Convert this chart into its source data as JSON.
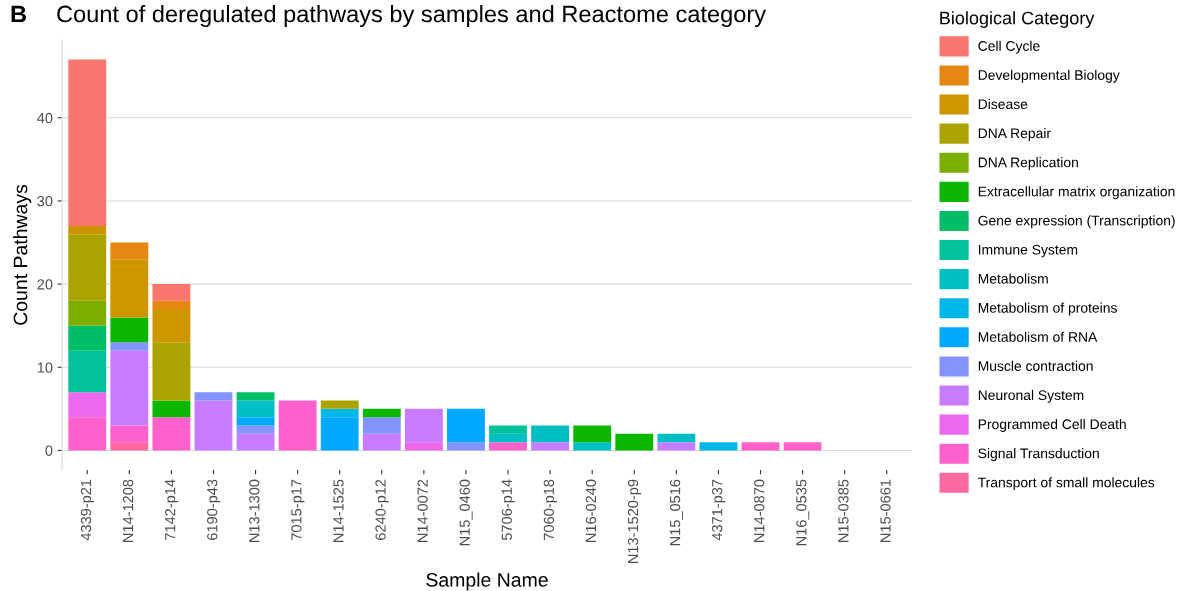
{
  "chart_data": {
    "type": "bar",
    "stacked": true,
    "title": "Count of deregulated pathways by samples and Reactome category",
    "xlabel": "Sample Name",
    "ylabel": "Count Pathways",
    "legend_title": "Biological Category",
    "legend": "right",
    "grid": "y",
    "annotations": [
      "B"
    ],
    "categories": [
      "4339-p21",
      "N14-1208",
      "7142-p14",
      "6190-p43",
      "N13-1300",
      "7015-p17",
      "N14-1525",
      "6240-p12",
      "N14-0072",
      "N15_0460",
      "5706-p14",
      "7060-p18",
      "N16-0240",
      "N13-1520-p9",
      "N15_0516",
      "4371-p37",
      "N14-0870",
      "N16_0535",
      "N15-0385",
      "N15-0661"
    ],
    "ylim": [
      -2.35,
      49.35
    ],
    "yticks": [
      0,
      10,
      20,
      30,
      40
    ],
    "series": [
      {
        "name": "Transport of small molecules",
        "color": "#ff68a1",
        "values": [
          0,
          1,
          0,
          0,
          0,
          0,
          0,
          0,
          0,
          0,
          0,
          0,
          0,
          0,
          0,
          0,
          0,
          0,
          0,
          0
        ]
      },
      {
        "name": "Signal Transduction",
        "color": "#ff61cc",
        "values": [
          4,
          2,
          4,
          0,
          0,
          6,
          0,
          0,
          0,
          0,
          1,
          0,
          0,
          0,
          0,
          0,
          1,
          1,
          0,
          0
        ]
      },
      {
        "name": "Programmed Cell Death",
        "color": "#ed68ed",
        "values": [
          3,
          0,
          0,
          0,
          0,
          0,
          0,
          0,
          1,
          0,
          0,
          0,
          0,
          0,
          0,
          0,
          0,
          0,
          0,
          0
        ]
      },
      {
        "name": "Neuronal System",
        "color": "#c77cff",
        "values": [
          0,
          9,
          0,
          6,
          2,
          0,
          0,
          2,
          4,
          0,
          0,
          1,
          0,
          0,
          1,
          0,
          0,
          0,
          0,
          0
        ]
      },
      {
        "name": "Muscle contraction",
        "color": "#8494ff",
        "values": [
          0,
          1,
          0,
          1,
          1,
          0,
          0,
          2,
          0,
          1,
          0,
          0,
          0,
          0,
          0,
          0,
          0,
          0,
          0,
          0
        ]
      },
      {
        "name": "Metabolism of RNA",
        "color": "#00a9ff",
        "values": [
          0,
          0,
          0,
          0,
          1,
          0,
          4,
          0,
          0,
          4,
          0,
          0,
          0,
          0,
          0,
          0,
          0,
          0,
          0,
          0
        ]
      },
      {
        "name": "Metabolism of proteins",
        "color": "#00b8e7",
        "values": [
          0,
          0,
          0,
          0,
          0,
          0,
          1,
          0,
          0,
          0,
          0,
          0,
          0,
          0,
          0,
          1,
          0,
          0,
          0,
          0
        ]
      },
      {
        "name": "Metabolism",
        "color": "#00bfc4",
        "values": [
          0,
          0,
          0,
          0,
          2,
          0,
          0,
          0,
          0,
          0,
          1,
          2,
          1,
          0,
          1,
          0,
          0,
          0,
          0,
          0
        ]
      },
      {
        "name": "Immune System",
        "color": "#00c19a",
        "values": [
          5,
          0,
          0,
          0,
          0,
          0,
          0,
          0,
          0,
          0,
          1,
          0,
          0,
          0,
          0,
          0,
          0,
          0,
          0,
          0
        ]
      },
      {
        "name": "Gene expression (Transcription)",
        "color": "#00be67",
        "values": [
          3,
          0,
          0,
          0,
          1,
          0,
          0,
          0,
          0,
          0,
          0,
          0,
          0,
          0,
          0,
          0,
          0,
          0,
          0,
          0
        ]
      },
      {
        "name": "Extracellular matrix organization",
        "color": "#0cb702",
        "values": [
          0,
          3,
          2,
          0,
          0,
          0,
          0,
          1,
          0,
          0,
          0,
          0,
          2,
          2,
          0,
          0,
          0,
          0,
          0,
          0
        ]
      },
      {
        "name": "DNA Replication",
        "color": "#7cae00",
        "values": [
          3,
          0,
          0,
          0,
          0,
          0,
          0,
          0,
          0,
          0,
          0,
          0,
          0,
          0,
          0,
          0,
          0,
          0,
          0,
          0
        ]
      },
      {
        "name": "DNA Repair",
        "color": "#aba300",
        "values": [
          8,
          0,
          7,
          0,
          0,
          0,
          1,
          0,
          0,
          0,
          0,
          0,
          0,
          0,
          0,
          0,
          0,
          0,
          0,
          0
        ]
      },
      {
        "name": "Disease",
        "color": "#cd9600",
        "values": [
          1,
          7,
          4,
          0,
          0,
          0,
          0,
          0,
          0,
          0,
          0,
          0,
          0,
          0,
          0,
          0,
          0,
          0,
          0,
          0
        ]
      },
      {
        "name": "Developmental Biology",
        "color": "#e68613",
        "values": [
          0,
          2,
          1,
          0,
          0,
          0,
          0,
          0,
          0,
          0,
          0,
          0,
          0,
          0,
          0,
          0,
          0,
          0,
          0,
          0
        ]
      },
      {
        "name": "Cell Cycle",
        "color": "#f8766d",
        "values": [
          20,
          0,
          2,
          0,
          0,
          0,
          0,
          0,
          0,
          0,
          0,
          0,
          0,
          0,
          0,
          0,
          0,
          0,
          0,
          0
        ]
      }
    ]
  }
}
